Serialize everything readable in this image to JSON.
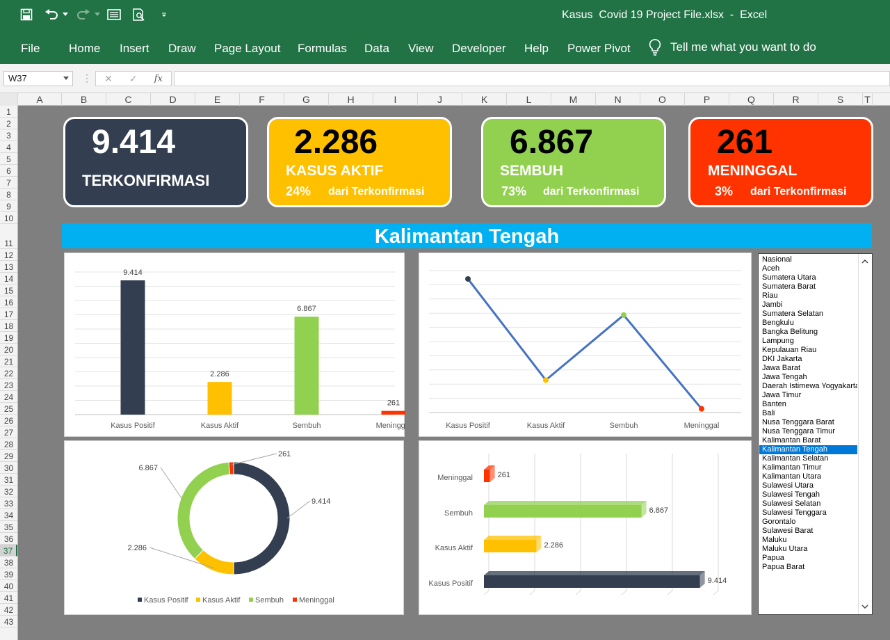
{
  "window": {
    "title": "Kasus  Covid 19 Project File.xlsx  -  Excel"
  },
  "ribbon": {
    "tabs": [
      "File",
      "Home",
      "Insert",
      "Draw",
      "Page Layout",
      "Formulas",
      "Data",
      "View",
      "Developer",
      "Help",
      "Power Pivot"
    ],
    "tell_me": "Tell me what you want to do"
  },
  "formula_bar": {
    "name_box": "W37",
    "formula": "",
    "fx": "fx"
  },
  "columns": [
    "A",
    "B",
    "C",
    "D",
    "E",
    "F",
    "G",
    "H",
    "I",
    "J",
    "K",
    "L",
    "M",
    "N",
    "O",
    "P",
    "Q",
    "R",
    "S",
    "T"
  ],
  "rows": [
    "1",
    "2",
    "3",
    "4",
    "5",
    "6",
    "7",
    "8",
    "9",
    "10",
    "11",
    "12",
    "13",
    "14",
    "15",
    "16",
    "17",
    "18",
    "19",
    "20",
    "21",
    "22",
    "23",
    "24",
    "25",
    "26",
    "27",
    "28",
    "29",
    "30",
    "31",
    "32",
    "33",
    "34",
    "35",
    "36",
    "37",
    "38",
    "39",
    "40",
    "41",
    "42",
    "43"
  ],
  "selected_row": "37",
  "cards": {
    "terkonfirmasi": {
      "value": "9.414",
      "label": "TERKONFIRMASI",
      "color": "#333f50"
    },
    "aktif": {
      "value": "2.286",
      "label": "KASUS AKTIF",
      "pct": "24%",
      "sub": "dari Terkonfirmasi",
      "color": "#ffc000"
    },
    "sembuh": {
      "value": "6.867",
      "label": "SEMBUH",
      "pct": "73%",
      "sub": "dari Terkonfirmasi",
      "color": "#92d050"
    },
    "meninggal": {
      "value": "261",
      "label": "MENINGGAL",
      "pct": "3%",
      "sub": "dari Terkonfirmasi",
      "color": "#ff3300"
    }
  },
  "region_title": "Kalimantan Tengah",
  "chart_data": [
    {
      "type": "bar",
      "categories": [
        "Kasus Positif",
        "Kasus Aktif",
        "Sembuh",
        "Meninggal"
      ],
      "values": [
        9414,
        2286,
        6867,
        261
      ],
      "data_labels": [
        "9.414",
        "2.286",
        "6.867",
        "261"
      ],
      "colors": [
        "#333f50",
        "#ffc000",
        "#92d050",
        "#ff3300"
      ],
      "ylim": [
        0,
        10000
      ],
      "grid": true
    },
    {
      "type": "line",
      "categories": [
        "Kasus Positif",
        "Kasus Aktif",
        "Sembuh",
        "Meninggal"
      ],
      "values": [
        9414,
        2286,
        6867,
        261
      ],
      "line_color": "#4472c4",
      "marker_colors": [
        "#333f50",
        "#ffc000",
        "#92d050",
        "#ff3300"
      ],
      "ylim": [
        0,
        10000
      ],
      "grid": true
    },
    {
      "type": "pie",
      "donut": true,
      "categories": [
        "Kasus Positif",
        "Kasus Aktif",
        "Sembuh",
        "Meninggal"
      ],
      "values": [
        9414,
        2286,
        6867,
        261
      ],
      "data_labels": [
        "9.414",
        "2.286",
        "6.867",
        "261"
      ],
      "colors": [
        "#333f50",
        "#ffc000",
        "#92d050",
        "#ff3300"
      ],
      "legend": "bottom"
    },
    {
      "type": "bar",
      "orientation": "horizontal",
      "style": "3d",
      "categories": [
        "Meninggal",
        "Sembuh",
        "Kasus Aktif",
        "Kasus Positif"
      ],
      "values": [
        261,
        6867,
        2286,
        9414
      ],
      "data_labels": [
        "261",
        "6.867",
        "2.286",
        "9.414"
      ],
      "colors": [
        "#ff3300",
        "#92d050",
        "#ffc000",
        "#333f50"
      ],
      "xlim": [
        0,
        10000
      ],
      "grid": true
    }
  ],
  "provinces": [
    "Nasional",
    "Aceh",
    "Sumatera Utara",
    "Sumatera Barat",
    "Riau",
    "Jambi",
    "Sumatera Selatan",
    "Bengkulu",
    "Bangka Belitung",
    "Lampung",
    "Kepulauan Riau",
    "DKI Jakarta",
    "Jawa Barat",
    "Jawa Tengah",
    "Daerah Istimewa Yogyakarta",
    "Jawa Timur",
    "Banten",
    "Bali",
    "Nusa Tenggara Barat",
    "Nusa Tenggara Timur",
    "Kalimantan Barat",
    "Kalimantan Tengah",
    "Kalimantan Selatan",
    "Kalimantan Timur",
    "Kalimantan Utara",
    "Sulawesi Utara",
    "Sulawesi Tengah",
    "Sulawesi Selatan",
    "Sulawesi Tenggara",
    "Gorontalo",
    "Sulawesi Barat",
    "Maluku",
    "Maluku Utara",
    "Papua",
    "Papua Barat"
  ],
  "selected_province": "Kalimantan Tengah"
}
